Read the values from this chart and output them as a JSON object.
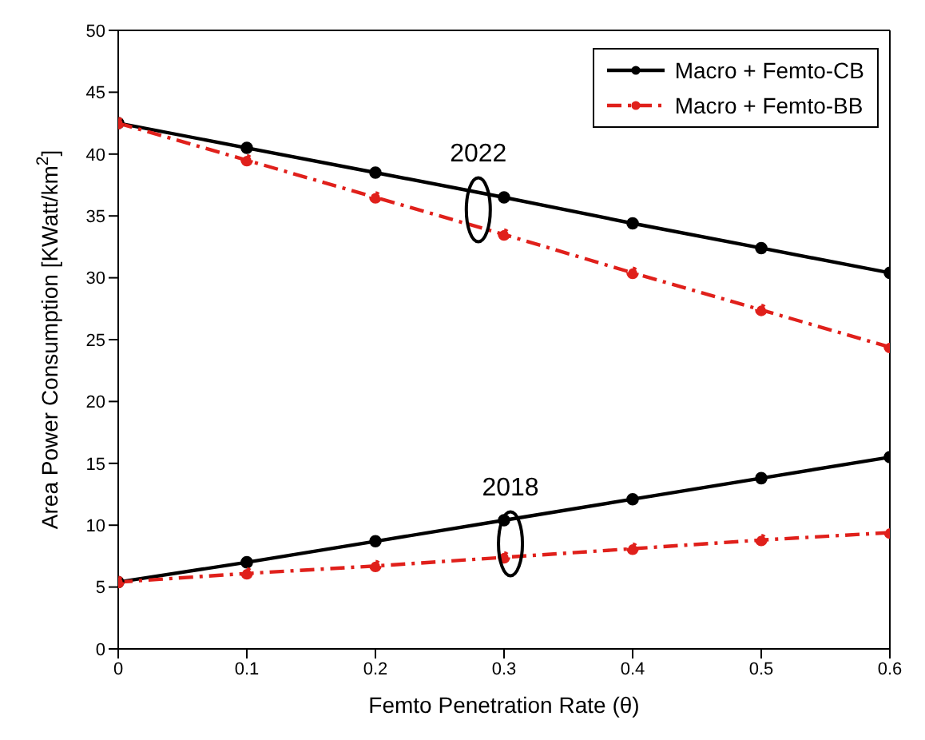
{
  "chart_data": {
    "type": "line",
    "xlabel": "Femto Penetration Rate (θ)",
    "ylabel": "Area Power Consumption [KWatt/km$^{2}$]",
    "x": [
      0,
      0.1,
      0.2,
      0.3,
      0.4,
      0.5,
      0.6
    ],
    "series": [
      {
        "name": "Macro + Femto-CB",
        "color": "#000000",
        "line_style": "solid",
        "values": [
          42.5,
          40.5,
          38.5,
          36.5,
          34.4,
          32.4,
          30.4
        ]
      },
      {
        "name": "Macro + Femto-BB",
        "color": "#e0201b",
        "line_style": "dashed",
        "values": [
          42.5,
          39.5,
          36.5,
          33.5,
          30.4,
          27.4,
          24.4
        ]
      },
      {
        "color": "#000000",
        "line_style": "solid",
        "values": [
          5.4,
          7.0,
          8.7,
          10.4,
          12.1,
          13.8,
          15.5
        ]
      },
      {
        "color": "#e0201b",
        "line_style": "dashed",
        "values": [
          5.4,
          6.1,
          6.7,
          7.4,
          8.1,
          8.8,
          9.4
        ]
      }
    ],
    "xlim": [
      0,
      0.6
    ],
    "xticks": [
      0,
      0.1,
      0.2,
      0.3,
      0.4,
      0.5,
      0.6
    ],
    "ylim": [
      0,
      50
    ],
    "yticks": [
      0,
      5,
      10,
      15,
      20,
      25,
      30,
      35,
      40,
      45,
      50
    ],
    "marker": "circle",
    "legend": "top right",
    "annotations": [
      {
        "text": "2022",
        "x": 0.28,
        "y": 35.5
      },
      {
        "text": "2018",
        "x": 0.305,
        "y": 8.5
      }
    ]
  }
}
